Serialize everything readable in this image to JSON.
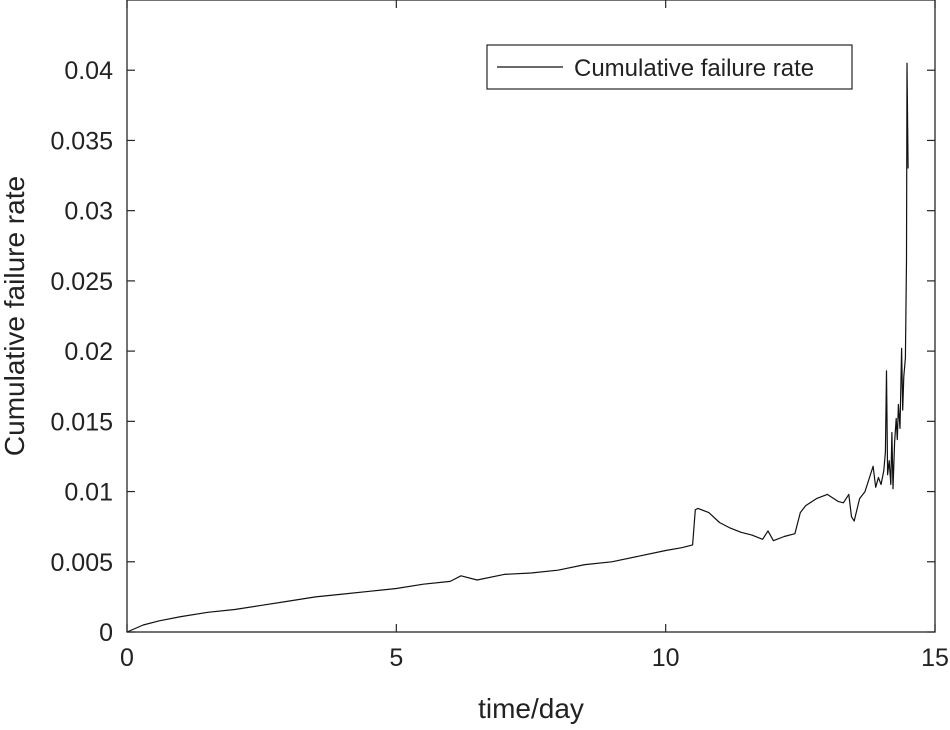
{
  "chart_data": {
    "type": "line",
    "xlabel": "time/day",
    "ylabel": "Cumulative failure rate",
    "xlim": [
      0,
      15
    ],
    "ylim": [
      0,
      0.045
    ],
    "xticks": [
      0,
      5,
      10,
      15
    ],
    "xtick_labels": [
      "0",
      "5",
      "10",
      "15"
    ],
    "yticks": [
      0,
      0.005,
      0.01,
      0.015,
      0.02,
      0.025,
      0.03,
      0.035,
      0.04
    ],
    "ytick_labels": [
      "0",
      "0.005",
      "0.01",
      "0.015",
      "0.02",
      "0.025",
      "0.03",
      "0.035",
      "0.04"
    ],
    "grid": false,
    "legend_position": "top-right",
    "series": [
      {
        "name": "Cumulative failure rate",
        "color": "#111111",
        "x": [
          0,
          0.3,
          0.6,
          1.0,
          1.5,
          2.0,
          2.5,
          3.0,
          3.5,
          4.0,
          4.5,
          5.0,
          5.5,
          6.0,
          6.2,
          6.5,
          7.0,
          7.5,
          8.0,
          8.5,
          9.0,
          9.5,
          10.0,
          10.3,
          10.5,
          10.55,
          10.6,
          10.8,
          11.0,
          11.2,
          11.4,
          11.6,
          11.8,
          11.9,
          12.0,
          12.2,
          12.4,
          12.5,
          12.6,
          12.8,
          13.0,
          13.2,
          13.3,
          13.4,
          13.45,
          13.5,
          13.6,
          13.7,
          13.8,
          13.85,
          13.9,
          13.95,
          14.0,
          14.05,
          14.08,
          14.1,
          14.12,
          14.15,
          14.18,
          14.2,
          14.22,
          14.25,
          14.28,
          14.3,
          14.32,
          14.35,
          14.38,
          14.4,
          14.42,
          14.45,
          14.47,
          14.48,
          14.5
        ],
        "y": [
          0,
          0.0005,
          0.0008,
          0.0011,
          0.0014,
          0.0016,
          0.0019,
          0.0022,
          0.0025,
          0.0027,
          0.0029,
          0.0031,
          0.0034,
          0.0036,
          0.004,
          0.0037,
          0.0041,
          0.0042,
          0.0044,
          0.0048,
          0.005,
          0.0054,
          0.0058,
          0.006,
          0.0062,
          0.0087,
          0.0088,
          0.0085,
          0.0078,
          0.0074,
          0.0071,
          0.0069,
          0.0066,
          0.0072,
          0.0065,
          0.0068,
          0.007,
          0.0085,
          0.009,
          0.0095,
          0.0098,
          0.0093,
          0.0092,
          0.0098,
          0.0082,
          0.0079,
          0.0095,
          0.01,
          0.0112,
          0.0118,
          0.0103,
          0.011,
          0.0105,
          0.0115,
          0.0128,
          0.0186,
          0.0112,
          0.0122,
          0.0105,
          0.0142,
          0.0102,
          0.0135,
          0.0152,
          0.0137,
          0.0162,
          0.0145,
          0.0202,
          0.0158,
          0.0182,
          0.0195,
          0.0265,
          0.0405,
          0.033
        ]
      }
    ]
  }
}
